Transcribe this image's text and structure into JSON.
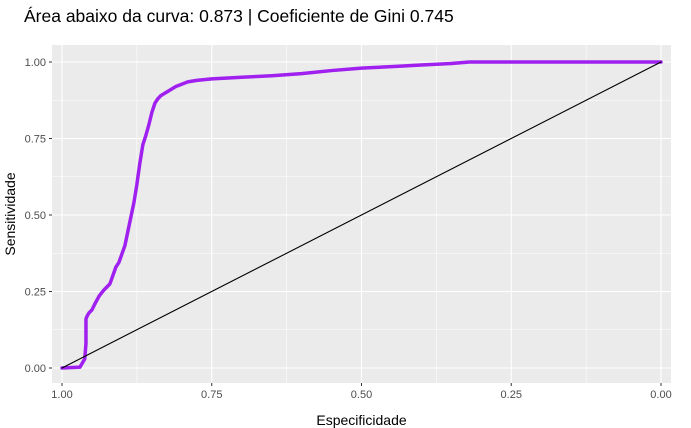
{
  "chart_data": {
    "type": "line",
    "title": "Área abaixo da curva: 0.873 | Coeficiente de Gini 0.745",
    "xlabel": "Especificidade",
    "ylabel": "Sensitividade",
    "x_reversed": true,
    "xlim": [
      1.0,
      0.0
    ],
    "ylim": [
      0.0,
      1.0
    ],
    "x_ticks": [
      "1.00",
      "0.75",
      "0.50",
      "0.25",
      "0.00"
    ],
    "y_ticks": [
      "0.00",
      "0.25",
      "0.50",
      "0.75",
      "1.00"
    ],
    "grid": true,
    "legend": "none",
    "colors": {
      "panel": "#ebebeb",
      "grid": "#ffffff",
      "curve": "#a020f0",
      "diagonal": "#000000"
    },
    "series": [
      {
        "role": "roc-curve",
        "x": [
          1.0,
          0.97,
          0.962,
          0.96,
          0.96,
          0.958,
          0.955,
          0.95,
          0.945,
          0.938,
          0.93,
          0.92,
          0.91,
          0.905,
          0.895,
          0.88,
          0.875,
          0.87,
          0.865,
          0.86,
          0.855,
          0.85,
          0.845,
          0.84,
          0.835,
          0.825,
          0.81,
          0.79,
          0.775,
          0.75,
          0.7,
          0.65,
          0.6,
          0.55,
          0.5,
          0.45,
          0.4,
          0.35,
          0.32,
          0.25,
          0.15,
          0.0
        ],
        "y": [
          0.0,
          0.003,
          0.03,
          0.08,
          0.16,
          0.17,
          0.18,
          0.19,
          0.21,
          0.235,
          0.255,
          0.275,
          0.33,
          0.345,
          0.4,
          0.54,
          0.6,
          0.67,
          0.73,
          0.76,
          0.795,
          0.835,
          0.865,
          0.88,
          0.89,
          0.902,
          0.92,
          0.935,
          0.94,
          0.945,
          0.95,
          0.955,
          0.962,
          0.972,
          0.98,
          0.985,
          0.99,
          0.995,
          1.0,
          1.0,
          1.0,
          1.0
        ]
      },
      {
        "role": "reference-diagonal",
        "x": [
          1.0,
          0.0
        ],
        "y": [
          0.0,
          1.0
        ]
      }
    ]
  }
}
